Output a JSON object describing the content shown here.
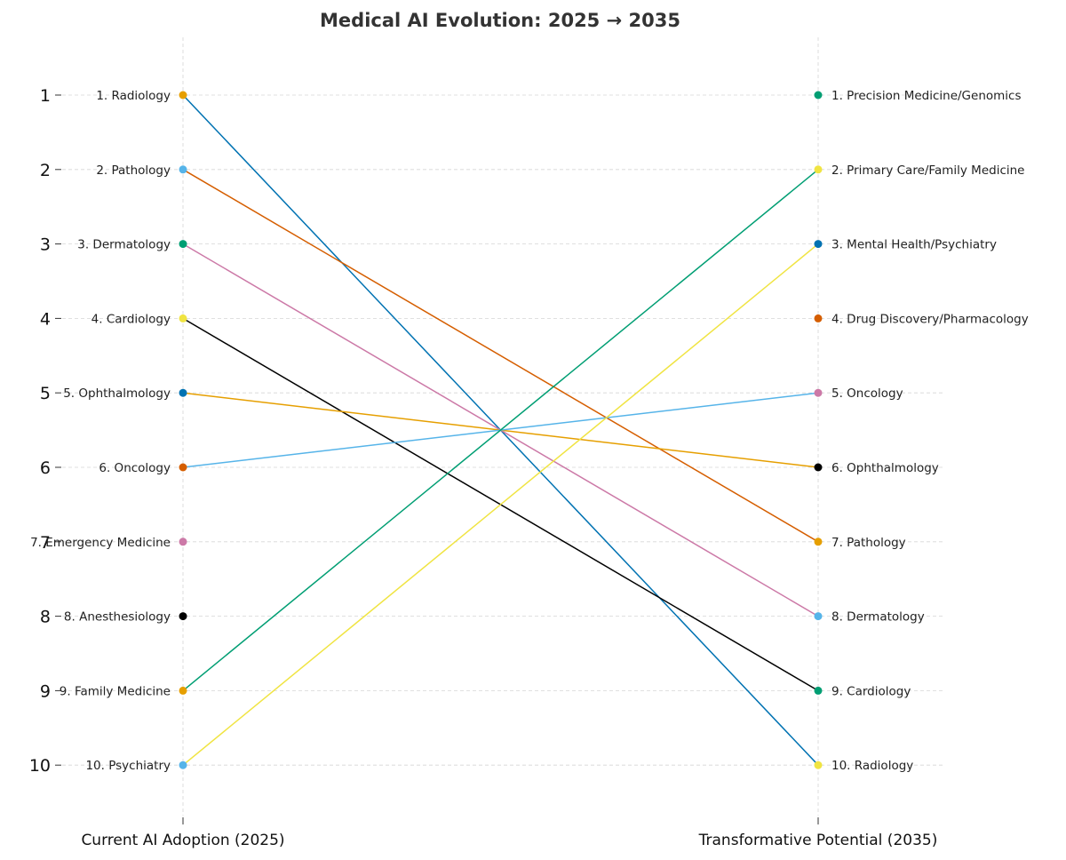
{
  "chart_data": {
    "type": "slope",
    "title": "Medical AI Evolution: 2025 → 2035",
    "x_categories": [
      "Current AI Adoption (2025)",
      "Transformative Potential (2035)"
    ],
    "y_ticks": [
      "1",
      "2",
      "3",
      "4",
      "5",
      "6",
      "7",
      "8",
      "9",
      "10"
    ],
    "y_axis": "rank, 1 at top",
    "grid": true,
    "left_labels": [
      "1. Radiology",
      "2. Pathology",
      "3. Dermatology",
      "4. Cardiology",
      "5. Ophthalmology",
      "6. Oncology",
      "7. Emergency Medicine",
      "8. Anesthesiology",
      "9. Family Medicine",
      "10. Psychiatry"
    ],
    "right_labels": [
      "1. Precision Medicine/Genomics",
      "2. Primary Care/Family Medicine",
      "3. Mental Health/Psychiatry",
      "4. Drug Discovery/Pharmacology",
      "5. Oncology",
      "6. Ophthalmology",
      "7. Pathology",
      "8. Dermatology",
      "9. Cardiology",
      "10. Radiology"
    ],
    "left_point_colors": [
      "#E69F00",
      "#56B4E9",
      "#009E73",
      "#F0E442",
      "#0072B2",
      "#D55E00",
      "#CC79A7",
      "#000000",
      "#E69F00",
      "#56B4E9"
    ],
    "right_point_colors": [
      "#009E73",
      "#F0E442",
      "#0072B2",
      "#D55E00",
      "#CC79A7",
      "#000000",
      "#E69F00",
      "#56B4E9",
      "#009E73",
      "#F0E442"
    ],
    "series": [
      {
        "from_rank": 1,
        "to_rank": 10,
        "color": "#0072B2"
      },
      {
        "from_rank": 2,
        "to_rank": 7,
        "color": "#D55E00"
      },
      {
        "from_rank": 3,
        "to_rank": 8,
        "color": "#CC79A7"
      },
      {
        "from_rank": 4,
        "to_rank": 9,
        "color": "#000000"
      },
      {
        "from_rank": 5,
        "to_rank": 6,
        "color": "#E69F00"
      },
      {
        "from_rank": 6,
        "to_rank": 5,
        "color": "#56B4E9"
      },
      {
        "from_rank": 9,
        "to_rank": 2,
        "color": "#009E73"
      },
      {
        "from_rank": 10,
        "to_rank": 3,
        "color": "#F0E442"
      }
    ]
  }
}
